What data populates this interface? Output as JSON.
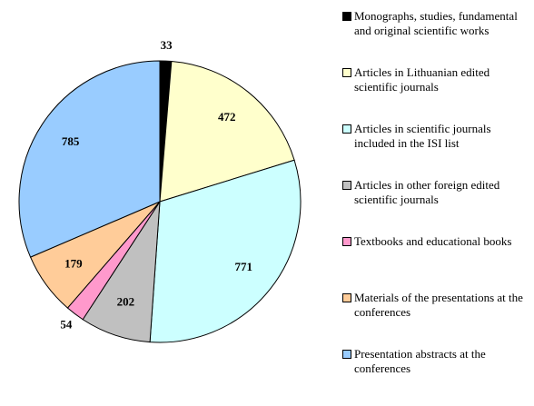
{
  "chart_data": {
    "type": "pie",
    "categories": [
      "Monographs, studies, fundamental and original scientific works",
      "Articles in Lithuanian edited scientific journals",
      "Articles in scientific journals included in the ISI list",
      "Articles in other foreign edited scientific journals",
      "Textbooks and educational books",
      "Materials of the presentations at the conferences",
      "Presentation abstracts at the conferences"
    ],
    "values": [
      33,
      472,
      771,
      202,
      54,
      179,
      785
    ],
    "colors": [
      "#000000",
      "#ffffcc",
      "#ccffff",
      "#c0c0c0",
      "#ff99cc",
      "#ffcc99",
      "#99ccff"
    ],
    "legend": "right"
  }
}
